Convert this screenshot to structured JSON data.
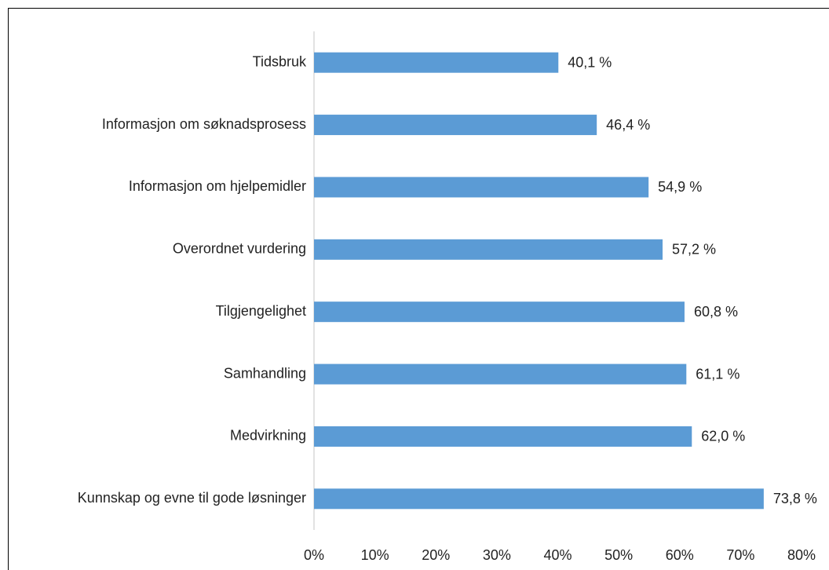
{
  "chart_data": {
    "type": "barh",
    "categories": [
      "Tidsbruk",
      "Informasjon om søknadsprosess",
      "Informasjon om hjelpemidler",
      "Overordnet vurdering",
      "Tilgjengelighet",
      "Samhandling",
      "Medvirkning",
      "Kunnskap og evne til gode løsninger"
    ],
    "values": [
      40.1,
      46.4,
      54.9,
      57.2,
      60.8,
      61.1,
      62.0,
      73.8
    ],
    "value_labels": [
      "40,1 %",
      "46,4 %",
      "54,9 %",
      "57,2 %",
      "60,8 %",
      "61,1 %",
      "62,0 %",
      "73,8 %"
    ],
    "color": "#5b9bd5",
    "xlim": [
      0,
      80
    ],
    "xticks": [
      {
        "value": 0,
        "label": "0%"
      },
      {
        "value": 10,
        "label": "10%"
      },
      {
        "value": 20,
        "label": "20%"
      },
      {
        "value": 30,
        "label": "30%"
      },
      {
        "value": 40,
        "label": "40%"
      },
      {
        "value": 50,
        "label": "50%"
      },
      {
        "value": 60,
        "label": "60%"
      },
      {
        "value": 70,
        "label": "70%"
      },
      {
        "value": 80,
        "label": "80%"
      }
    ],
    "grid": false
  }
}
